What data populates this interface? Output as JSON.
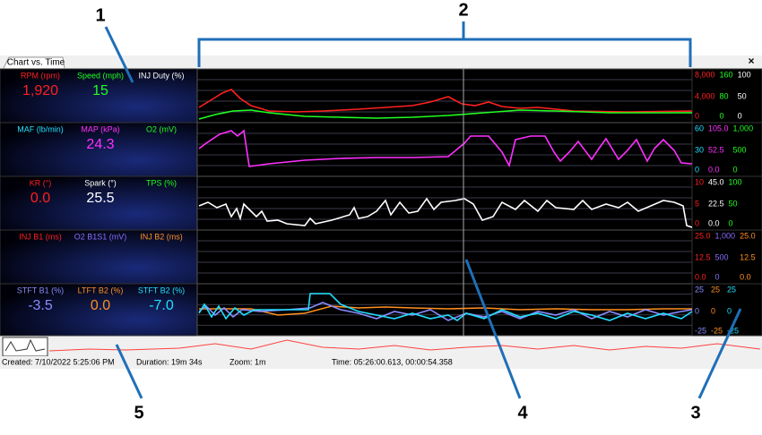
{
  "callouts": [
    "1",
    "2",
    "3",
    "4",
    "5"
  ],
  "tab": "Chart vs. Time",
  "close": "×",
  "panels": [
    {
      "channels": [
        {
          "label": "RPM (rpm)",
          "value": "1,920",
          "color": "#ff2020"
        },
        {
          "label": "Speed (mph)",
          "value": "15",
          "color": "#20ff20"
        },
        {
          "label": "INJ Duty (%)",
          "color": "#ffffff"
        }
      ],
      "scales": [
        {
          "color": "#ff2020",
          "labels": [
            "8,000",
            "4,000",
            "0"
          ]
        },
        {
          "color": "#20ff20",
          "labels": [
            "160",
            "80",
            "0"
          ]
        },
        {
          "color": "#ffffff",
          "labels": [
            "100",
            "50",
            "0"
          ]
        }
      ]
    },
    {
      "channels": [
        {
          "label": "MAF (lb/min)",
          "color": "#20e0ff"
        },
        {
          "label": "MAP (kPa)",
          "value": "24.3",
          "color": "#ff30ff"
        },
        {
          "label": "O2 (mV)",
          "color": "#20ff20"
        }
      ],
      "scales": [
        {
          "color": "#20e0ff",
          "labels": [
            "60",
            "30",
            "0"
          ]
        },
        {
          "color": "#ff30ff",
          "labels": [
            "105.0",
            "52.5",
            "0.0"
          ]
        },
        {
          "color": "#20ff20",
          "labels": [
            "1,000",
            "500",
            "0"
          ]
        }
      ]
    },
    {
      "channels": [
        {
          "label": "KR (°)",
          "value": "0.0",
          "color": "#ff2020"
        },
        {
          "label": "Spark (°)",
          "value": "25.5",
          "color": "#ffffff"
        },
        {
          "label": "TPS (%)",
          "color": "#20ff20"
        }
      ],
      "scales": [
        {
          "color": "#ff2020",
          "labels": [
            "10",
            "5",
            "0"
          ]
        },
        {
          "color": "#ffffff",
          "labels": [
            "45.0",
            "22.5",
            "0.0"
          ]
        },
        {
          "color": "#20ff20",
          "labels": [
            "100",
            "50",
            "0"
          ]
        }
      ]
    },
    {
      "channels": [
        {
          "label": "INJ B1 (ms)",
          "color": "#ff2020"
        },
        {
          "label": "O2 B1S1 (mV)",
          "color": "#8a6cff"
        },
        {
          "label": "INJ B2 (ms)",
          "color": "#ff9020"
        }
      ],
      "scales": [
        {
          "color": "#ff2020",
          "labels": [
            "25.0",
            "12.5",
            "0.0"
          ]
        },
        {
          "color": "#8a6cff",
          "labels": [
            "1,000",
            "500",
            "0"
          ]
        },
        {
          "color": "#ff9020",
          "labels": [
            "25.0",
            "12.5",
            "0.0"
          ]
        }
      ]
    },
    {
      "channels": [
        {
          "label": "STFT B1 (%)",
          "value": "-3.5",
          "color": "#8a8cff"
        },
        {
          "label": "LTFT B2 (%)",
          "value": "0.0",
          "color": "#ff9020"
        },
        {
          "label": "STFT B2 (%)",
          "value": "-7.0",
          "color": "#20e0ff"
        }
      ],
      "scales": [
        {
          "color": "#8a8cff",
          "labels": [
            "25",
            "0",
            "-25"
          ]
        },
        {
          "color": "#ff9020",
          "labels": [
            "25",
            "0",
            "-25"
          ]
        },
        {
          "color": "#20e0ff",
          "labels": [
            "25",
            "0",
            "-25"
          ]
        }
      ]
    }
  ],
  "status": [
    "Created: 7/10/2022 5:25:06 PM",
    "Duration: 19m 34s",
    "Zoom: 1m",
    "Time: 05:26:00.613, 00:00:54.358"
  ]
}
